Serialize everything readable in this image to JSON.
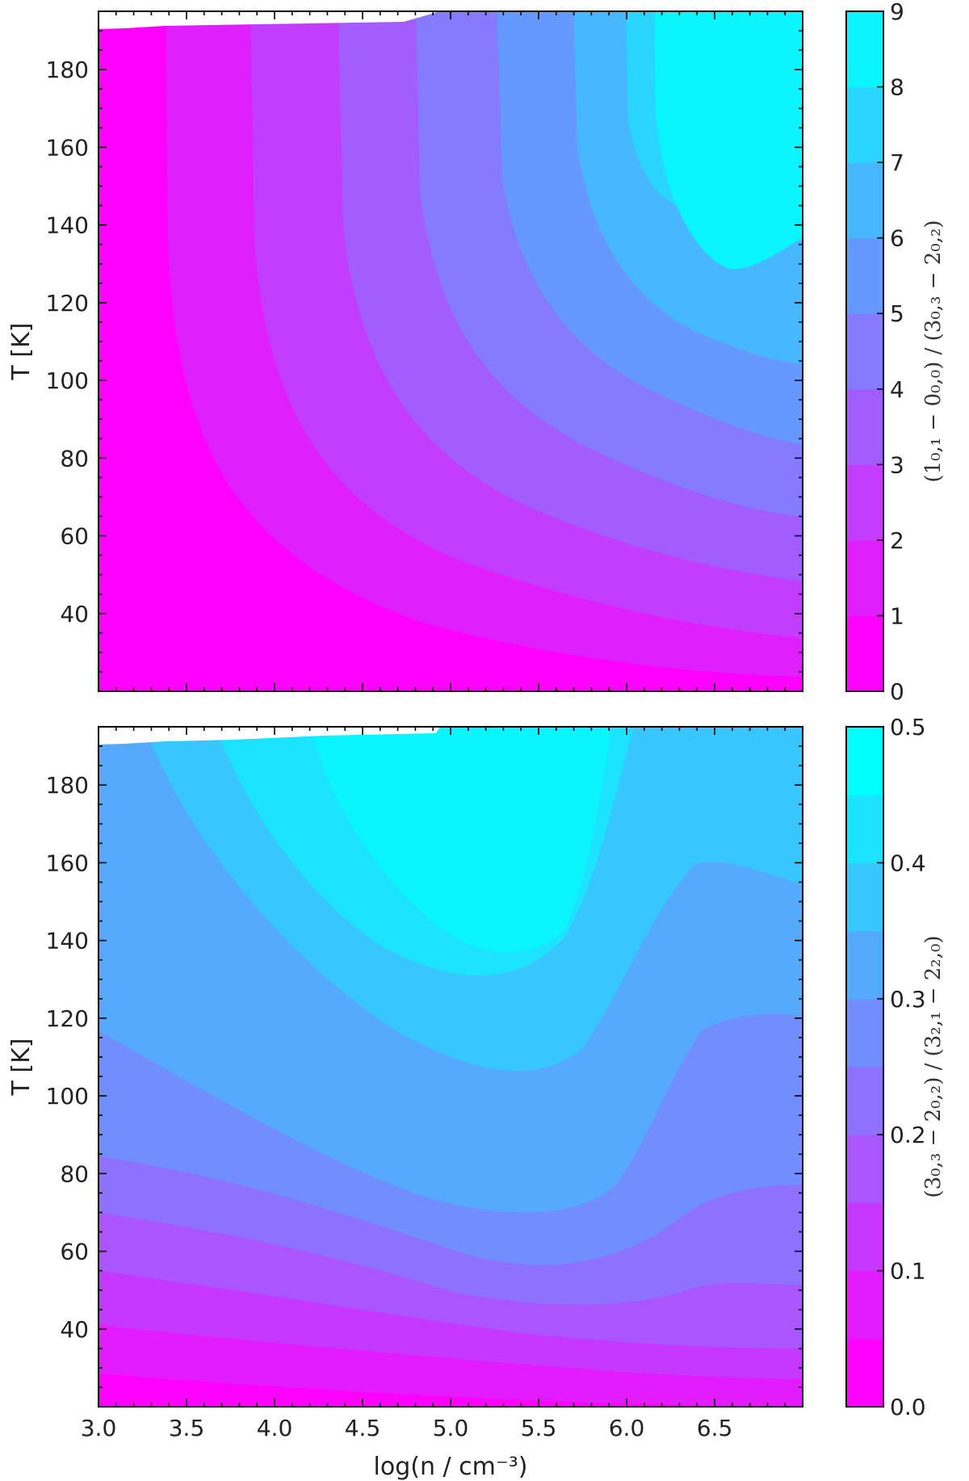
{
  "chart_data": [
    {
      "type": "contour",
      "panel": "top",
      "xlabel": "",
      "ylabel": "T [K]",
      "xlim": [
        3.0,
        7.0
      ],
      "ylim": [
        20,
        195
      ],
      "x_ticks": [],
      "y_ticks": [
        "40",
        "60",
        "80",
        "100",
        "120",
        "140",
        "160",
        "180"
      ],
      "colorbar": {
        "label": "(1_{0,1} − 0_{0,0}) / (3_{0,3} − 2_{0,2})",
        "label_text": "(1₀,₁ − 0₀,₀) / (3₀,₃ − 2₀,₂)",
        "min": 0,
        "max": 9,
        "ticks": [
          "0",
          "1",
          "2",
          "3",
          "4",
          "5",
          "6",
          "7",
          "8",
          "9"
        ],
        "levels": [
          0,
          1,
          2,
          3,
          4,
          5,
          6,
          7,
          8,
          9
        ],
        "colors": [
          "#ff00ff",
          "#e01ffe",
          "#c23dfe",
          "#a35cfe",
          "#847bfe",
          "#6599ff",
          "#47b8ff",
          "#28d6ff",
          "#09f6ff"
        ]
      },
      "contour_levels_approx": [
        {
          "level": 1,
          "points": [
            [
              3.55,
              192
            ],
            [
              3.6,
              120
            ],
            [
              3.72,
              60
            ],
            [
              4.2,
              38
            ],
            [
              5.0,
              29
            ],
            [
              6.0,
              24.5
            ],
            [
              7.0,
              23
            ]
          ]
        },
        {
          "level": 2,
          "points": [
            [
              4.05,
              192
            ],
            [
              4.2,
              120
            ],
            [
              4.35,
              75
            ],
            [
              4.8,
              53
            ],
            [
              5.5,
              41
            ],
            [
              6.2,
              34
            ],
            [
              7.0,
              31
            ]
          ]
        },
        {
          "level": 3,
          "points": [
            [
              4.55,
              192
            ],
            [
              4.7,
              130
            ],
            [
              4.85,
              90
            ],
            [
              5.2,
              68
            ],
            [
              5.8,
              53
            ],
            [
              6.5,
              45
            ],
            [
              7.0,
              41
            ]
          ]
        },
        {
          "level": 4,
          "points": [
            [
              5.0,
              192
            ],
            [
              5.15,
              140
            ],
            [
              5.3,
              105
            ],
            [
              5.6,
              82
            ],
            [
              6.1,
              68
            ],
            [
              6.6,
              58
            ],
            [
              7.0,
              51
            ]
          ]
        },
        {
          "level": 5,
          "points": [
            [
              5.45,
              192
            ],
            [
              5.55,
              150
            ],
            [
              5.7,
              118
            ],
            [
              6.0,
              96
            ],
            [
              6.4,
              82
            ],
            [
              7.0,
              72
            ]
          ]
        },
        {
          "level": 6,
          "points": [
            [
              5.9,
              192
            ],
            [
              6.0,
              150
            ],
            [
              6.1,
              120
            ],
            [
              6.4,
              103
            ],
            [
              7.0,
              90
            ]
          ]
        },
        {
          "level": 7,
          "points": [
            [
              6.35,
              192
            ],
            [
              6.42,
              150
            ],
            [
              6.55,
              130
            ],
            [
              6.75,
              123
            ],
            [
              7.0,
              128
            ]
          ]
        }
      ]
    },
    {
      "type": "contour",
      "panel": "bottom",
      "xlabel": "log(n / cm⁻³)",
      "ylabel": "T [K]",
      "xlim": [
        3.0,
        7.0
      ],
      "ylim": [
        20,
        195
      ],
      "x_ticks": [
        "3.0",
        "3.5",
        "4.0",
        "4.5",
        "5.0",
        "5.5",
        "6.0",
        "6.5"
      ],
      "y_ticks": [
        "40",
        "60",
        "80",
        "100",
        "120",
        "140",
        "160",
        "180"
      ],
      "colorbar": {
        "label": "(3_{0,3} − 2_{0,2}) / (3_{2,1} − 2_{2,0})",
        "label_text": "(3₀,₃ − 2₀,₂) / (3₂,₁ − 2₂,₀)",
        "min": 0.0,
        "max": 0.5,
        "ticks": [
          "0.0",
          "0.1",
          "0.2",
          "0.3",
          "0.4",
          "0.5"
        ],
        "levels": [
          0.0,
          0.05,
          0.1,
          0.15,
          0.2,
          0.25,
          0.3,
          0.35,
          0.4,
          0.45,
          0.5
        ],
        "colors": [
          "#ff00ff",
          "#e31cff",
          "#c638ff",
          "#aa55ff",
          "#8e71ff",
          "#718eff",
          "#55aaff",
          "#38c6ff",
          "#1ce3ff",
          "#00ffff"
        ]
      },
      "contour_levels_approx": [
        {
          "level": 0.05,
          "points": [
            [
              3.0,
              26
            ],
            [
              4.0,
              23
            ],
            [
              5.0,
              21
            ],
            [
              6.0,
              20
            ],
            [
              7.0,
              20
            ]
          ]
        },
        {
          "level": 0.1,
          "points": [
            [
              3.0,
              41
            ],
            [
              4.0,
              36
            ],
            [
              5.0,
              30
            ],
            [
              6.0,
              26
            ],
            [
              7.0,
              24
            ]
          ]
        },
        {
          "level": 0.15,
          "points": [
            [
              3.0,
              56
            ],
            [
              3.8,
              50
            ],
            [
              4.6,
              41
            ],
            [
              5.4,
              36
            ],
            [
              6.2,
              33
            ],
            [
              7.0,
              31
            ]
          ]
        },
        {
          "level": 0.2,
          "points": [
            [
              3.0,
              75
            ],
            [
              3.8,
              68
            ],
            [
              4.5,
              56
            ],
            [
              5.3,
              46
            ],
            [
              6.0,
              46
            ],
            [
              6.5,
              50
            ],
            [
              7.0,
              47
            ]
          ]
        },
        {
          "level": 0.25,
          "points": [
            [
              3.0,
              98
            ],
            [
              3.8,
              85
            ],
            [
              4.5,
              67
            ],
            [
              5.2,
              54
            ],
            [
              5.9,
              54
            ],
            [
              6.4,
              62
            ],
            [
              7.0,
              63
            ]
          ]
        },
        {
          "level": 0.3,
          "points": [
            [
              3.0,
              143
            ],
            [
              3.5,
              120
            ],
            [
              4.2,
              92
            ],
            [
              5.0,
              72
            ],
            [
              5.6,
              66
            ],
            [
              6.1,
              75
            ],
            [
              6.5,
              97
            ],
            [
              7.0,
              99
            ]
          ]
        },
        {
          "level": 0.35,
          "points": [
            [
              3.2,
              192
            ],
            [
              3.7,
              150
            ],
            [
              4.5,
              110
            ],
            [
              5.3,
              90
            ],
            [
              5.9,
              96
            ],
            [
              6.3,
              130
            ],
            [
              6.7,
              160
            ],
            [
              7.0,
              150
            ]
          ]
        },
        {
          "level": 0.4,
          "points": [
            [
              3.75,
              192
            ],
            [
              4.3,
              160
            ],
            [
              5.0,
              136
            ],
            [
              5.5,
              136
            ],
            [
              5.9,
              165
            ],
            [
              6.2,
              192
            ]
          ]
        }
      ]
    }
  ]
}
